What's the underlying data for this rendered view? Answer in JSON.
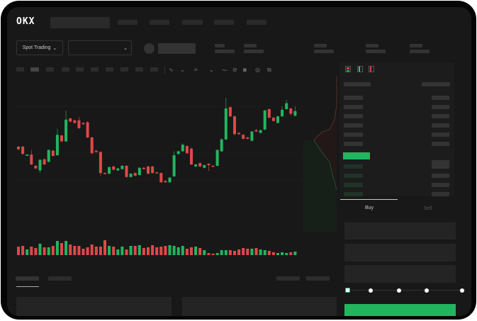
{
  "logo": "OKX",
  "toolbar": {
    "market_type": "Spot Trading",
    "chevron": "⌄"
  },
  "order_form": {
    "tabs": [
      {
        "label": "Buy",
        "active": true
      },
      {
        "label": "Sell",
        "active": false
      }
    ],
    "leverage_slider": {
      "value_percent": 0,
      "stops": [
        0,
        25,
        50,
        75,
        100
      ]
    }
  },
  "colors": {
    "up": "#22b55f",
    "down": "#e04848",
    "bg": "#181818"
  },
  "icons": [
    "line-chart-icon",
    "draw-icon",
    "camera-icon",
    "settings-icon",
    "fullscreen-icon",
    "orderbook-both-icon",
    "orderbook-bids-icon",
    "orderbook-asks-icon"
  ],
  "chart_data": {
    "type": "candlestick",
    "ohlc": [
      [
        57,
        53,
        58,
        52
      ],
      [
        57,
        46,
        58,
        45
      ],
      [
        43,
        45,
        45,
        43
      ],
      [
        45,
        30,
        52,
        29
      ],
      [
        28,
        24,
        29,
        23
      ],
      [
        21,
        37,
        38,
        17
      ],
      [
        38,
        30,
        39,
        29
      ],
      [
        34,
        52,
        53,
        33
      ],
      [
        51,
        43,
        52,
        42
      ],
      [
        44,
        75,
        84,
        43
      ],
      [
        74,
        65,
        75,
        64
      ],
      [
        65,
        98,
        112,
        64
      ],
      [
        100,
        95,
        101,
        94
      ],
      [
        97,
        93,
        98,
        92
      ],
      [
        97,
        85,
        102,
        84
      ],
      [
        93,
        91,
        94,
        90
      ],
      [
        94,
        71,
        96,
        70
      ],
      [
        71,
        47,
        72,
        46
      ],
      [
        51,
        49,
        52,
        47
      ],
      [
        49,
        17,
        50,
        13
      ],
      [
        17,
        16,
        18,
        15
      ],
      [
        16,
        26,
        27,
        15
      ],
      [
        27,
        22,
        28,
        21
      ],
      [
        21,
        24,
        25,
        20
      ],
      [
        23,
        28,
        29,
        22
      ],
      [
        28,
        11,
        29,
        10
      ],
      [
        11,
        16,
        17,
        10
      ],
      [
        17,
        13,
        18,
        12
      ],
      [
        14,
        25,
        26,
        13
      ],
      [
        25,
        23,
        26,
        22
      ],
      [
        27,
        16,
        28,
        15
      ],
      [
        27,
        17,
        28,
        16
      ],
      [
        18,
        17,
        19,
        16
      ],
      [
        17,
        3,
        18,
        2
      ],
      [
        5,
        3,
        6,
        2
      ],
      [
        3,
        10,
        11,
        2
      ],
      [
        12,
        44,
        50,
        11
      ],
      [
        46,
        50,
        51,
        45
      ],
      [
        50,
        60,
        62,
        49
      ],
      [
        58,
        47,
        59,
        46
      ],
      [
        54,
        30,
        56,
        29
      ],
      [
        27,
        30,
        31,
        26
      ],
      [
        32,
        27,
        33,
        26
      ],
      [
        25,
        29,
        30,
        24
      ],
      [
        31,
        29,
        32,
        20
      ],
      [
        28,
        27,
        29,
        26
      ],
      [
        28,
        52,
        53,
        27
      ],
      [
        50,
        68,
        70,
        49
      ],
      [
        68,
        115,
        131,
        67
      ],
      [
        117,
        103,
        118,
        102
      ],
      [
        103,
        76,
        104,
        74
      ],
      [
        78,
        76,
        79,
        75
      ],
      [
        75,
        69,
        76,
        68
      ],
      [
        71,
        69,
        72,
        68
      ],
      [
        66,
        80,
        81,
        65
      ],
      [
        82,
        80,
        84,
        79
      ],
      [
        78,
        82,
        83,
        77
      ],
      [
        83,
        112,
        113,
        82
      ],
      [
        114,
        101,
        115,
        100
      ],
      [
        101,
        96,
        102,
        95
      ],
      [
        93,
        103,
        104,
        92
      ],
      [
        103,
        113,
        118,
        102
      ],
      [
        114,
        123,
        128,
        113
      ],
      [
        115,
        107,
        116,
        104
      ],
      [
        104,
        111,
        118,
        103
      ]
    ],
    "volume": [
      12,
      13,
      8,
      12,
      10,
      16,
      11,
      11,
      13,
      20,
      17,
      20,
      15,
      13,
      13,
      9,
      11,
      15,
      12,
      12,
      21,
      13,
      12,
      8,
      12,
      8,
      13,
      13,
      14,
      10,
      11,
      14,
      11,
      12,
      13,
      14,
      13,
      11,
      13,
      9,
      11,
      12,
      10,
      7,
      3,
      2,
      3,
      7,
      7,
      7,
      6,
      8,
      10,
      9,
      9,
      10,
      8,
      7,
      6,
      4,
      3,
      4,
      3,
      4,
      5
    ]
  }
}
